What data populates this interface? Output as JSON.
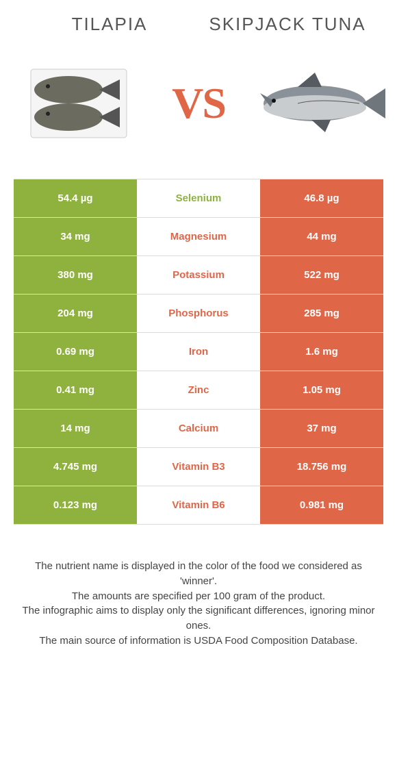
{
  "header": {
    "left_title": "TILAPIA",
    "right_title": "SKIPJACK TUNA",
    "vs_label": "VS"
  },
  "colors": {
    "left": "#8fb23e",
    "right": "#e06648",
    "title_color": "#565656",
    "text_color": "#444444",
    "white": "#ffffff"
  },
  "rows": [
    {
      "nutrient": "Selenium",
      "left": "54.4 µg",
      "right": "46.8 µg",
      "winner": "left"
    },
    {
      "nutrient": "Magnesium",
      "left": "34 mg",
      "right": "44 mg",
      "winner": "right"
    },
    {
      "nutrient": "Potassium",
      "left": "380 mg",
      "right": "522 mg",
      "winner": "right"
    },
    {
      "nutrient": "Phosphorus",
      "left": "204 mg",
      "right": "285 mg",
      "winner": "right"
    },
    {
      "nutrient": "Iron",
      "left": "0.69 mg",
      "right": "1.6 mg",
      "winner": "right"
    },
    {
      "nutrient": "Zinc",
      "left": "0.41 mg",
      "right": "1.05 mg",
      "winner": "right"
    },
    {
      "nutrient": "Calcium",
      "left": "14 mg",
      "right": "37 mg",
      "winner": "right"
    },
    {
      "nutrient": "Vitamin B3",
      "left": "4.745 mg",
      "right": "18.756 mg",
      "winner": "right"
    },
    {
      "nutrient": "Vitamin B6",
      "left": "0.123 mg",
      "right": "0.981 mg",
      "winner": "right"
    }
  ],
  "footer": {
    "line1": "The nutrient name is displayed in the color of the food we considered as 'winner'.",
    "line2": "The amounts are specified per 100 gram of the product.",
    "line3": "The infographic aims to display only the significant differences, ignoring minor ones.",
    "line4": "The main source of information is USDA Food Composition Database."
  }
}
